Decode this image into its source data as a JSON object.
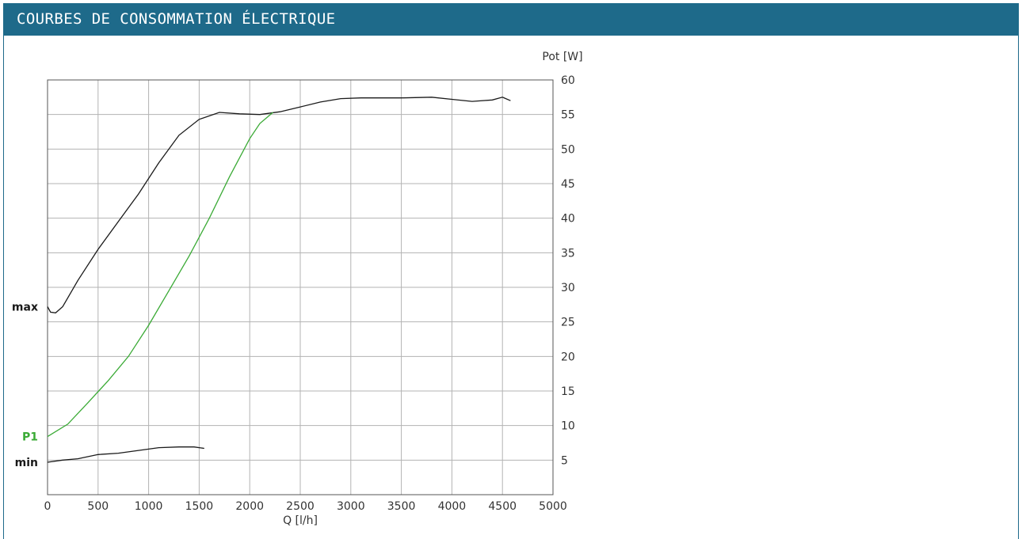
{
  "header": {
    "title": "COURBES DE CONSOMMATION ÉLECTRIQUE",
    "color": "#1e6a8a"
  },
  "chart_data": {
    "type": "line",
    "title": "COURBES DE CONSOMMATION ÉLECTRIQUE",
    "xlabel": "Q [l/h]",
    "ylabel": "Pot [W]",
    "xlim": [
      0,
      5000
    ],
    "ylim": [
      0,
      60
    ],
    "x_ticks": [
      "0",
      "500",
      "1000",
      "1500",
      "2000",
      "2500",
      "3000",
      "3500",
      "4000",
      "4500",
      "5000"
    ],
    "y_ticks": [
      "5",
      "10",
      "15",
      "20",
      "25",
      "30",
      "35",
      "40",
      "45",
      "50",
      "55",
      "60"
    ],
    "y_tick_values": [
      5,
      10,
      15,
      20,
      25,
      30,
      35,
      40,
      45,
      50,
      55,
      60
    ],
    "grid": true,
    "y_axis_position": "right",
    "series": [
      {
        "name": "max",
        "color": "#1a1a1a",
        "points": [
          [
            0,
            27.2
          ],
          [
            30,
            26.4
          ],
          [
            80,
            26.3
          ],
          [
            150,
            27.2
          ],
          [
            300,
            31
          ],
          [
            500,
            35.5
          ],
          [
            700,
            39.5
          ],
          [
            900,
            43.5
          ],
          [
            1100,
            48
          ],
          [
            1300,
            52
          ],
          [
            1500,
            54.3
          ],
          [
            1700,
            55.3
          ],
          [
            1900,
            55.1
          ],
          [
            2100,
            55.0
          ],
          [
            2300,
            55.4
          ],
          [
            2500,
            56.1
          ],
          [
            2700,
            56.8
          ],
          [
            2900,
            57.3
          ],
          [
            3100,
            57.4
          ],
          [
            3500,
            57.4
          ],
          [
            3800,
            57.5
          ],
          [
            4000,
            57.2
          ],
          [
            4200,
            56.9
          ],
          [
            4400,
            57.1
          ],
          [
            4500,
            57.5
          ],
          [
            4580,
            57.0
          ]
        ]
      },
      {
        "name": "P1",
        "color": "#3aaa35",
        "points": [
          [
            0,
            8.4
          ],
          [
            200,
            10.2
          ],
          [
            400,
            13.3
          ],
          [
            600,
            16.5
          ],
          [
            800,
            20
          ],
          [
            1000,
            24.5
          ],
          [
            1200,
            29.5
          ],
          [
            1400,
            34.5
          ],
          [
            1600,
            40
          ],
          [
            1800,
            46
          ],
          [
            2000,
            51.5
          ],
          [
            2100,
            53.7
          ],
          [
            2230,
            55.3
          ]
        ]
      },
      {
        "name": "min",
        "color": "#1a1a1a",
        "points": [
          [
            0,
            4.7
          ],
          [
            150,
            5.0
          ],
          [
            300,
            5.2
          ],
          [
            500,
            5.8
          ],
          [
            700,
            6.0
          ],
          [
            900,
            6.4
          ],
          [
            1100,
            6.8
          ],
          [
            1300,
            6.9
          ],
          [
            1450,
            6.9
          ],
          [
            1550,
            6.7
          ]
        ]
      }
    ]
  }
}
